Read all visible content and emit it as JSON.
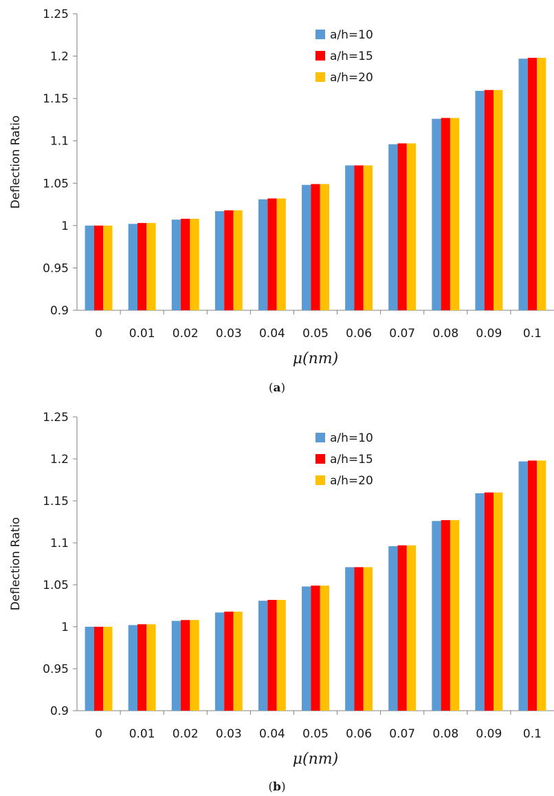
{
  "chart_data": [
    {
      "type": "bar",
      "panel": "a",
      "xlabel": "μ(nm)",
      "ylabel": "Deflection Ratio",
      "ylim": [
        0.9,
        1.25
      ],
      "yticks": [
        "0.9",
        "0.95",
        "1",
        "1.05",
        "1.1",
        "1.15",
        "1.2",
        "1.25"
      ],
      "categories": [
        "0",
        "0.01",
        "0.02",
        "0.03",
        "0.04",
        "0.05",
        "0.06",
        "0.07",
        "0.08",
        "0.09",
        "0.1"
      ],
      "series": [
        {
          "name": "a/h=10",
          "color": "#5B9BD5",
          "values": [
            1.0,
            1.002,
            1.007,
            1.017,
            1.031,
            1.048,
            1.071,
            1.096,
            1.126,
            1.159,
            1.197
          ]
        },
        {
          "name": "a/h=15",
          "color": "#FF0000",
          "values": [
            1.0,
            1.003,
            1.008,
            1.018,
            1.032,
            1.049,
            1.071,
            1.097,
            1.127,
            1.16,
            1.198
          ]
        },
        {
          "name": "a/h=20",
          "color": "#FFC000",
          "values": [
            1.0,
            1.003,
            1.008,
            1.018,
            1.032,
            1.049,
            1.071,
            1.097,
            1.127,
            1.16,
            1.198
          ]
        }
      ],
      "legend_position": "top-center",
      "grid": false,
      "caption": "(a)"
    },
    {
      "type": "bar",
      "panel": "b",
      "xlabel": "μ(nm)",
      "ylabel": "Deflection Ratio",
      "ylim": [
        0.9,
        1.25
      ],
      "yticks": [
        "0.9",
        "0.95",
        "1",
        "1.05",
        "1.1",
        "1.15",
        "1.2",
        "1.25"
      ],
      "categories": [
        "0",
        "0.01",
        "0.02",
        "0.03",
        "0.04",
        "0.05",
        "0.06",
        "0.07",
        "0.08",
        "0.09",
        "0.1"
      ],
      "series": [
        {
          "name": "a/h=10",
          "color": "#5B9BD5",
          "values": [
            1.0,
            1.002,
            1.007,
            1.017,
            1.031,
            1.048,
            1.071,
            1.096,
            1.126,
            1.159,
            1.197
          ]
        },
        {
          "name": "a/h=15",
          "color": "#FF0000",
          "values": [
            1.0,
            1.003,
            1.008,
            1.018,
            1.032,
            1.049,
            1.071,
            1.097,
            1.127,
            1.16,
            1.198
          ]
        },
        {
          "name": "a/h=20",
          "color": "#FFC000",
          "values": [
            1.0,
            1.003,
            1.008,
            1.018,
            1.032,
            1.049,
            1.071,
            1.097,
            1.127,
            1.16,
            1.198
          ]
        }
      ],
      "legend_position": "top-center",
      "grid": false,
      "caption": "(b)"
    }
  ]
}
